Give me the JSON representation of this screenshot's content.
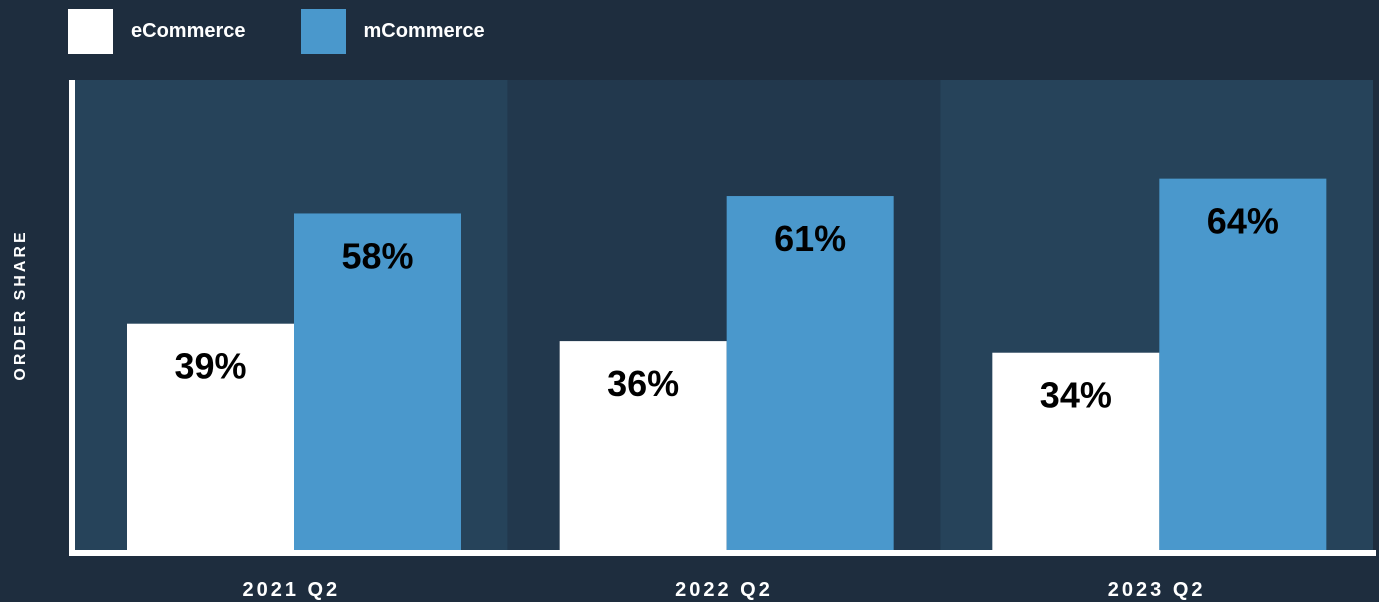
{
  "legend": [
    {
      "label": "eCommerce",
      "color": "#ffffff"
    },
    {
      "label": "mCommerce",
      "color": "#4a98cc"
    }
  ],
  "chart_data": {
    "type": "bar",
    "title": "",
    "xlabel": "",
    "ylabel": "ORDER SHARE",
    "categories": [
      "2021 Q2",
      "2022 Q2",
      "2023 Q2"
    ],
    "series": [
      {
        "name": "eCommerce",
        "values": [
          39,
          36,
          34
        ],
        "labels": [
          "39%",
          "36%",
          "34%"
        ],
        "color": "#ffffff"
      },
      {
        "name": "mCommerce",
        "values": [
          58,
          61,
          64
        ],
        "labels": [
          "58%",
          "61%",
          "64%"
        ],
        "color": "#4a98cc"
      }
    ],
    "ylim": [
      0,
      81
    ],
    "grid": false,
    "legend_position": "top-left",
    "panel_colors": [
      "#26435a",
      "#22384d",
      "#26435a"
    ]
  }
}
